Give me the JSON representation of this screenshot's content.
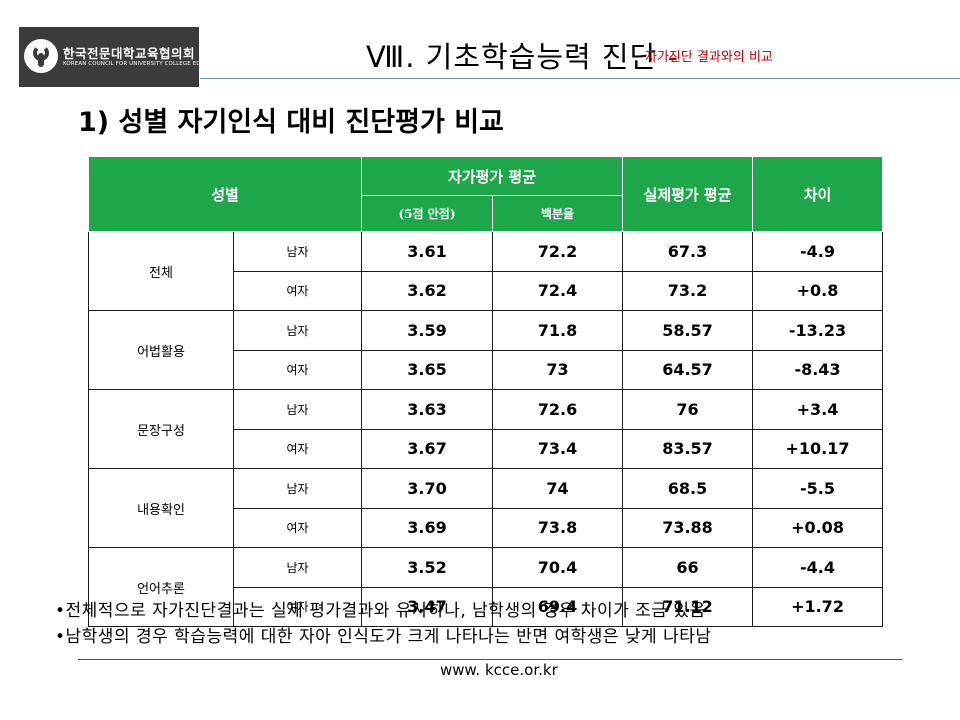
{
  "logo": {
    "name_kr": "한국전문대학교육협의회",
    "name_en": "KOREAN COUNCIL FOR UNIVERSITY COLLEGE EDUCATION"
  },
  "header": {
    "section": "Ⅷ. 기초학습능력 진단",
    "dash": "-",
    "subtitle": "자가진단 결과와의 비교"
  },
  "heading": "1) 성별 자기인식 대비 진단평가 비교",
  "table": {
    "col_gender": "성별",
    "col_self": "자가평가 평균",
    "col_self_score": "(5점 만점)",
    "col_self_pct": "백분율",
    "col_actual": "실제평가 평균",
    "col_diff": "차이",
    "groups": [
      {
        "category": "전체",
        "rows": [
          {
            "gender": "남자",
            "score": "3.61",
            "pct": "72.2",
            "actual": "67.3",
            "diff": "-4.9"
          },
          {
            "gender": "여자",
            "score": "3.62",
            "pct": "72.4",
            "actual": "73.2",
            "diff": "+0.8"
          }
        ]
      },
      {
        "category": "어법활용",
        "rows": [
          {
            "gender": "남자",
            "score": "3.59",
            "pct": "71.8",
            "actual": "58.57",
            "diff": "-13.23"
          },
          {
            "gender": "여자",
            "score": "3.65",
            "pct": "73",
            "actual": "64.57",
            "diff": "-8.43"
          }
        ]
      },
      {
        "category": "문장구성",
        "rows": [
          {
            "gender": "남자",
            "score": "3.63",
            "pct": "72.6",
            "actual": "76",
            "diff": "+3.4"
          },
          {
            "gender": "여자",
            "score": "3.67",
            "pct": "73.4",
            "actual": "83.57",
            "diff": "+10.17"
          }
        ]
      },
      {
        "category": "내용확인",
        "rows": [
          {
            "gender": "남자",
            "score": "3.70",
            "pct": "74",
            "actual": "68.5",
            "diff": "-5.5"
          },
          {
            "gender": "여자",
            "score": "3.69",
            "pct": "73.8",
            "actual": "73.88",
            "diff": "+0.08"
          }
        ]
      },
      {
        "category": "언어추론",
        "rows": [
          {
            "gender": "남자",
            "score": "3.52",
            "pct": "70.4",
            "actual": "66",
            "diff": "-4.4"
          },
          {
            "gender": "여자",
            "score": "3.47",
            "pct": "69.4",
            "actual": "71.12",
            "diff": "+1.72"
          }
        ]
      }
    ]
  },
  "bullets": [
    "•전체적으로 자가진단결과는 실제 평가결과와 유사하나, 남학생의 경우 차이가 조금 있음",
    "•남학생의 경우 학습능력에 대한 자아 인식도가 크게 나타나는 반면 여학생은 낮게 나타남"
  ],
  "footer": {
    "url": "www. kcce.or.kr"
  }
}
